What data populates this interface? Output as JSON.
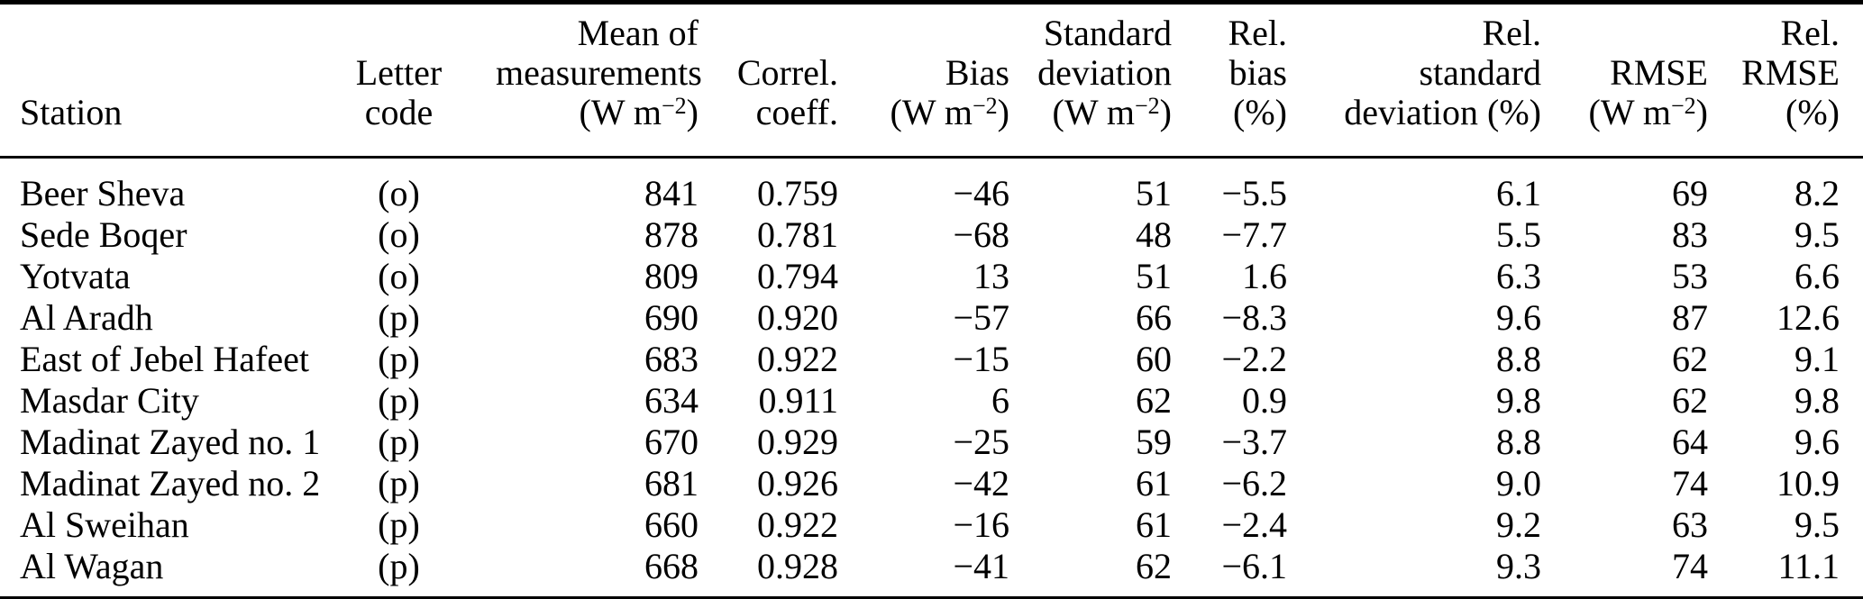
{
  "colors": {
    "text": "#000000",
    "background": "#ffffff",
    "rule": "#000000"
  },
  "table": {
    "columns": [
      {
        "id": "station",
        "align": "left",
        "label_lines": [
          "Station"
        ]
      },
      {
        "id": "letter_code",
        "align": "center",
        "label_lines": [
          "Letter",
          "code"
        ]
      },
      {
        "id": "mean",
        "align": "right",
        "label_lines": [
          "Mean of",
          "measurements",
          {
            "pre": "(W m",
            "sup": "−2",
            "post": ")"
          }
        ]
      },
      {
        "id": "correl",
        "align": "right",
        "label_lines": [
          "Correl.",
          "coeff."
        ]
      },
      {
        "id": "bias",
        "align": "right",
        "label_lines": [
          "Bias",
          {
            "pre": "(W m",
            "sup": "−2",
            "post": ")"
          }
        ]
      },
      {
        "id": "std_dev",
        "align": "right",
        "label_lines": [
          "Standard",
          "deviation",
          {
            "pre": "(W m",
            "sup": "−2",
            "post": ")"
          }
        ]
      },
      {
        "id": "rel_bias",
        "align": "right",
        "label_lines": [
          "Rel.",
          "bias",
          "(%)"
        ]
      },
      {
        "id": "rel_std_dev",
        "align": "right",
        "label_lines": [
          "Rel.",
          "standard",
          "deviation (%)"
        ]
      },
      {
        "id": "rmse",
        "align": "right",
        "label_lines": [
          "RMSE",
          {
            "pre": "(W m",
            "sup": "−2",
            "post": ")"
          }
        ]
      },
      {
        "id": "rel_rmse",
        "align": "right",
        "label_lines": [
          "Rel.",
          "RMSE",
          "(%)"
        ]
      }
    ],
    "rows": [
      [
        "Beer Sheva",
        "(o)",
        "841",
        "0.759",
        "−46",
        "51",
        "−5.5",
        "6.1",
        "69",
        "8.2"
      ],
      [
        "Sede Boqer",
        "(o)",
        "878",
        "0.781",
        "−68",
        "48",
        "−7.7",
        "5.5",
        "83",
        "9.5"
      ],
      [
        "Yotvata",
        "(o)",
        "809",
        "0.794",
        "13",
        "51",
        "1.6",
        "6.3",
        "53",
        "6.6"
      ],
      [
        "Al Aradh",
        "(p)",
        "690",
        "0.920",
        "−57",
        "66",
        "−8.3",
        "9.6",
        "87",
        "12.6"
      ],
      [
        "East of Jebel Hafeet",
        "(p)",
        "683",
        "0.922",
        "−15",
        "60",
        "−2.2",
        "8.8",
        "62",
        "9.1"
      ],
      [
        "Masdar City",
        "(p)",
        "634",
        "0.911",
        "6",
        "62",
        "0.9",
        "9.8",
        "62",
        "9.8"
      ],
      [
        "Madinat Zayed no. 1",
        "(p)",
        "670",
        "0.929",
        "−25",
        "59",
        "−3.7",
        "8.8",
        "64",
        "9.6"
      ],
      [
        "Madinat Zayed no. 2",
        "(p)",
        "681",
        "0.926",
        "−42",
        "61",
        "−6.2",
        "9.0",
        "74",
        "10.9"
      ],
      [
        "Al Sweihan",
        "(p)",
        "660",
        "0.922",
        "−16",
        "61",
        "−2.4",
        "9.2",
        "63",
        "9.5"
      ],
      [
        "Al Wagan",
        "(p)",
        "668",
        "0.928",
        "−41",
        "62",
        "−6.1",
        "9.3",
        "74",
        "11.1"
      ]
    ]
  }
}
